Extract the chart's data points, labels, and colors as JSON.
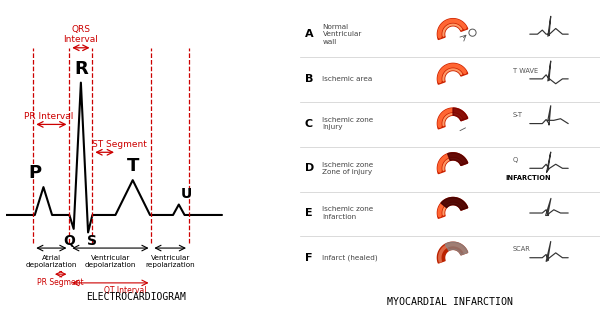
{
  "bg_color": "#ffffff",
  "ecg_color": "#000000",
  "red_color": "#cc0000",
  "title_left": "ELECTROCARDIOGRAM",
  "title_right": "MYOCARDIAL INFARCTION",
  "right_rows": [
    {
      "letter": "A",
      "label": "Normal\nVentricular\nwall",
      "ecg_note": "",
      "extra": ""
    },
    {
      "letter": "B",
      "label": "Ischemic area",
      "ecg_note": "T WAVE",
      "extra": ""
    },
    {
      "letter": "C",
      "label": "Ischemic zone\nInjury",
      "ecg_note": "S-T",
      "extra": ""
    },
    {
      "letter": "D",
      "label": "Ischemic zone\nZone of injury",
      "ecg_note": "Q",
      "extra": "INFARCTION"
    },
    {
      "letter": "E",
      "label": "Ischemic zone\nInfarction",
      "ecg_note": "",
      "extra": ""
    },
    {
      "letter": "F",
      "label": "Infarct (healed)",
      "ecg_note": "SCAR",
      "extra": ""
    }
  ],
  "ecg_types": [
    "normal",
    "twave_inv",
    "st_elev",
    "q_wave",
    "infarct",
    "healed"
  ]
}
